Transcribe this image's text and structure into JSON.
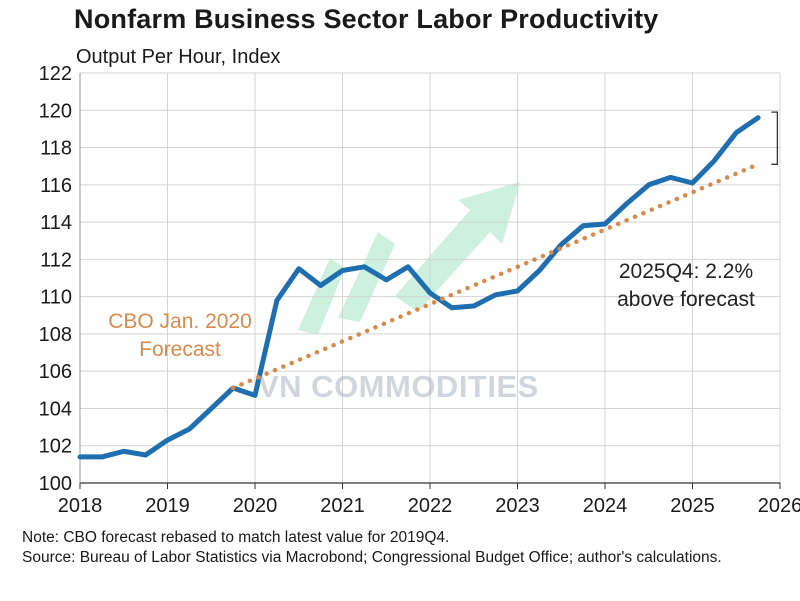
{
  "title": "Nonfarm Business Sector Labor Productivity",
  "subtitle": "Output Per Hour, Index",
  "note": "Note: CBO forecast rebased to match latest value for 2019Q4.",
  "source": "Source: Bureau of Labor Statistics via Macrobond; Congressional Budget Office; author's calculations.",
  "watermark": "VN COMMODITIES",
  "colors": {
    "actual": "#1f6fb0",
    "forecast": "#d98a4b",
    "grid": "#d4d4d4",
    "annotation": "#333333",
    "watermark": "#9aa6b6"
  },
  "chart_data": {
    "type": "line",
    "x_type": "year",
    "xlim": [
      2018,
      2026
    ],
    "ylim": [
      100,
      122
    ],
    "y_ticks": [
      100,
      102,
      104,
      106,
      108,
      110,
      112,
      114,
      116,
      118,
      120,
      122
    ],
    "x_tick_labels": [
      "2018",
      "2019",
      "2020",
      "2021",
      "2022",
      "2023",
      "2024",
      "2025",
      "2026"
    ],
    "grid": true,
    "series": [
      {
        "style": "solid",
        "color": "#1f6fb0",
        "points": [
          [
            2018.0,
            101.4
          ],
          [
            2018.25,
            101.4
          ],
          [
            2018.5,
            101.7
          ],
          [
            2018.75,
            101.5
          ],
          [
            2019.0,
            102.3
          ],
          [
            2019.25,
            102.9
          ],
          [
            2019.5,
            104.0
          ],
          [
            2019.75,
            105.1
          ],
          [
            2020.0,
            104.7
          ],
          [
            2020.25,
            109.8
          ],
          [
            2020.5,
            111.5
          ],
          [
            2020.75,
            110.6
          ],
          [
            2021.0,
            111.4
          ],
          [
            2021.25,
            111.6
          ],
          [
            2021.5,
            110.9
          ],
          [
            2021.75,
            111.6
          ],
          [
            2022.0,
            110.2
          ],
          [
            2022.25,
            109.4
          ],
          [
            2022.5,
            109.5
          ],
          [
            2022.75,
            110.1
          ],
          [
            2023.0,
            110.3
          ],
          [
            2023.25,
            111.4
          ],
          [
            2023.5,
            112.8
          ],
          [
            2023.75,
            113.8
          ],
          [
            2024.0,
            113.9
          ],
          [
            2024.25,
            115.0
          ],
          [
            2024.5,
            116.0
          ],
          [
            2024.75,
            116.4
          ],
          [
            2025.0,
            116.1
          ],
          [
            2025.25,
            117.3
          ],
          [
            2025.5,
            118.8
          ],
          [
            2025.75,
            119.6
          ]
        ]
      },
      {
        "name": "CBO Jan. 2020 Forecast",
        "style": "dotted",
        "color": "#d98a4b",
        "points": [
          [
            2019.75,
            105.1
          ],
          [
            2025.75,
            117.1
          ]
        ]
      }
    ],
    "annotations": [
      {
        "text_lines": [
          "CBO Jan. 2020",
          "Forecast"
        ],
        "color": "#d98a4b",
        "anchor": [
          2019.0,
          107.8
        ]
      },
      {
        "text_lines": [
          "2025Q4: 2.2%",
          "above forecast"
        ],
        "color": "#222222",
        "anchor": [
          2025.0,
          110.1
        ]
      }
    ],
    "bracket": {
      "x": 2025.97,
      "y_top": 119.9,
      "y_bottom": 117.1
    }
  }
}
